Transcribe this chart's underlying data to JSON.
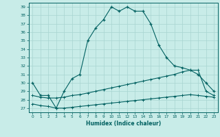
{
  "xlabel": "Humidex (Indice chaleur)",
  "ylabel": "",
  "bg_color": "#c8ece8",
  "grid_color": "#a8d4d0",
  "line_color": "#006060",
  "xlim": [
    -0.5,
    23.5
  ],
  "ylim": [
    26.5,
    39.5
  ],
  "yticks": [
    27,
    28,
    29,
    30,
    31,
    32,
    33,
    34,
    35,
    36,
    37,
    38,
    39
  ],
  "xticks": [
    0,
    1,
    2,
    3,
    4,
    5,
    6,
    7,
    8,
    9,
    10,
    11,
    12,
    13,
    14,
    15,
    16,
    17,
    18,
    19,
    20,
    21,
    22,
    23
  ],
  "series_main": {
    "x": [
      0,
      1,
      2,
      3,
      4,
      5,
      6,
      7,
      8,
      9,
      10,
      11,
      12,
      13,
      14,
      15,
      16,
      17,
      18,
      19,
      20,
      21,
      22,
      23
    ],
    "y": [
      30.0,
      28.5,
      28.5,
      27.0,
      29.0,
      30.5,
      31.0,
      35.0,
      36.5,
      37.5,
      39.0,
      38.5,
      39.0,
      38.5,
      38.5,
      37.0,
      34.5,
      33.0,
      32.0,
      31.8,
      31.5,
      31.0,
      30.0,
      29.0
    ]
  },
  "series_upper": {
    "x": [
      0,
      1,
      2,
      3,
      4,
      5,
      6,
      7,
      8,
      9,
      10,
      11,
      12,
      13,
      14,
      15,
      16,
      17,
      18,
      19,
      20,
      21,
      22,
      23
    ],
    "y": [
      28.5,
      28.3,
      28.2,
      28.2,
      28.3,
      28.5,
      28.6,
      28.8,
      29.0,
      29.2,
      29.4,
      29.6,
      29.8,
      30.0,
      30.2,
      30.4,
      30.6,
      30.8,
      31.0,
      31.3,
      31.5,
      31.5,
      29.0,
      28.5
    ]
  },
  "series_lower": {
    "x": [
      0,
      1,
      2,
      3,
      4,
      5,
      6,
      7,
      8,
      9,
      10,
      11,
      12,
      13,
      14,
      15,
      16,
      17,
      18,
      19,
      20,
      21,
      22,
      23
    ],
    "y": [
      27.5,
      27.3,
      27.2,
      27.0,
      27.0,
      27.1,
      27.2,
      27.3,
      27.4,
      27.5,
      27.6,
      27.7,
      27.8,
      27.9,
      28.0,
      28.1,
      28.2,
      28.3,
      28.4,
      28.5,
      28.6,
      28.5,
      28.4,
      28.3
    ]
  }
}
